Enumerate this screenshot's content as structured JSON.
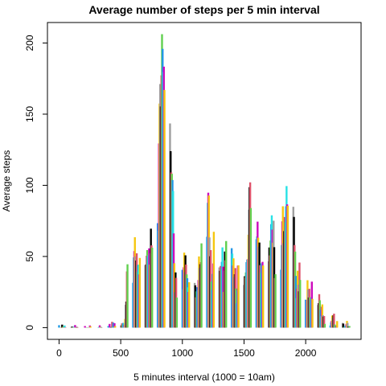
{
  "chart_data": {
    "type": "bar_h",
    "title": "Average number of steps per 5 min interval",
    "x_label": "5 minutes interval (1000 = 10am)",
    "y_label": "Average steps",
    "colors": [
      "#2297E6",
      "#28E2E5",
      "#CD0BBC",
      "#F5C710",
      "#9E9E9E",
      "#000000",
      "#DF536B",
      "#61D04F"
    ],
    "xlim": [
      -94.2,
      2449.2
    ],
    "ylim": [
      -8.25,
      214.4
    ],
    "xticks": [
      0,
      500,
      1000,
      1500,
      2000
    ],
    "yticks": [
      0,
      50,
      100,
      150,
      200
    ],
    "x": [
      0,
      5,
      10,
      15,
      20,
      25,
      30,
      35,
      40,
      45,
      50,
      55,
      100,
      105,
      110,
      115,
      120,
      125,
      130,
      135,
      140,
      145,
      150,
      155,
      200,
      205,
      210,
      215,
      220,
      225,
      230,
      235,
      240,
      245,
      250,
      255,
      300,
      305,
      310,
      315,
      320,
      325,
      330,
      335,
      340,
      345,
      350,
      355,
      400,
      405,
      410,
      415,
      420,
      425,
      430,
      435,
      440,
      445,
      450,
      455,
      500,
      505,
      510,
      515,
      520,
      525,
      530,
      535,
      540,
      545,
      550,
      555,
      600,
      605,
      610,
      615,
      620,
      625,
      630,
      635,
      640,
      645,
      650,
      655,
      700,
      705,
      710,
      715,
      720,
      725,
      730,
      735,
      740,
      745,
      750,
      755,
      800,
      805,
      810,
      815,
      820,
      825,
      830,
      835,
      840,
      845,
      850,
      855,
      900,
      905,
      910,
      915,
      920,
      925,
      930,
      935,
      940,
      945,
      950,
      955,
      1000,
      1005,
      1010,
      1015,
      1020,
      1025,
      1030,
      1035,
      1040,
      1045,
      1050,
      1055,
      1100,
      1105,
      1110,
      1115,
      1120,
      1125,
      1130,
      1135,
      1140,
      1145,
      1150,
      1155,
      1200,
      1205,
      1210,
      1215,
      1220,
      1225,
      1230,
      1235,
      1240,
      1245,
      1250,
      1255,
      1300,
      1305,
      1310,
      1315,
      1320,
      1325,
      1330,
      1335,
      1340,
      1345,
      1350,
      1355,
      1400,
      1405,
      1410,
      1415,
      1420,
      1425,
      1430,
      1435,
      1440,
      1445,
      1450,
      1455,
      1500,
      1505,
      1510,
      1515,
      1520,
      1525,
      1530,
      1535,
      1540,
      1545,
      1550,
      1555,
      1600,
      1605,
      1610,
      1615,
      1620,
      1625,
      1630,
      1635,
      1640,
      1645,
      1650,
      1655,
      1700,
      1705,
      1710,
      1715,
      1720,
      1725,
      1730,
      1735,
      1740,
      1745,
      1750,
      1755,
      1800,
      1805,
      1810,
      1815,
      1820,
      1825,
      1830,
      1835,
      1840,
      1845,
      1850,
      1855,
      1900,
      1905,
      1910,
      1915,
      1920,
      1925,
      1930,
      1935,
      1940,
      1945,
      1950,
      1955,
      2000,
      2005,
      2010,
      2015,
      2020,
      2025,
      2030,
      2035,
      2040,
      2045,
      2050,
      2055,
      2100,
      2105,
      2110,
      2115,
      2120,
      2125,
      2130,
      2135,
      2140,
      2145,
      2150,
      2155,
      2200,
      2205,
      2210,
      2215,
      2220,
      2225,
      2230,
      2235,
      2240,
      2245,
      2250,
      2255,
      2300,
      2305,
      2310,
      2315,
      2320,
      2325,
      2330,
      2335,
      2340,
      2345,
      2350,
      2355
    ],
    "values": [
      1.7,
      0.3,
      0.1,
      0.2,
      0.1,
      2.1,
      0.5,
      0.9,
      0,
      1.5,
      0.3,
      0.1,
      0.3,
      0.7,
      0.2,
      0.3,
      0,
      1.1,
      1.8,
      0.2,
      0.2,
      0.4,
      0.3,
      0,
      0,
      0,
      1.1,
      0,
      0,
      0.1,
      0,
      0.2,
      0,
      0,
      1.5,
      0.9,
      0,
      0,
      0,
      0,
      0.2,
      0.6,
      1.6,
      0.6,
      0.5,
      0.1,
      0,
      0,
      1.2,
      0.9,
      2.6,
      0,
      0.3,
      0.4,
      4.1,
      0.7,
      3.5,
      0.8,
      3.1,
      1.1,
      0,
      1.6,
      3.0,
      2.2,
      3.3,
      3.0,
      2.1,
      6.1,
      16.0,
      18.3,
      39.5,
      44.5,
      31.5,
      49.3,
      53.8,
      63.5,
      50.0,
      47.1,
      52.2,
      39.3,
      44.0,
      44.2,
      37.4,
      49.0,
      43.8,
      44.4,
      50.5,
      54.5,
      49.9,
      51.0,
      55.7,
      44.3,
      52.3,
      69.5,
      57.8,
      56.2,
      73.4,
      68.2,
      129.4,
      157.5,
      171.2,
      155.4,
      177.3,
      206.2,
      195.9,
      179.6,
      183.4,
      167.0,
      143.5,
      124.0,
      109.1,
      108.1,
      103.7,
      96.0,
      66.2,
      45.2,
      24.8,
      38.8,
      35.0,
      21.1,
      40.6,
      27.0,
      42.4,
      52.7,
      38.9,
      50.8,
      44.3,
      37.4,
      34.7,
      28.3,
      25.1,
      31.9,
      31.4,
      29.7,
      21.3,
      25.5,
      28.4,
      26.5,
      33.4,
      50.0,
      42.0,
      44.6,
      46.0,
      59.2,
      63.9,
      87.7,
      94.8,
      92.8,
      63.4,
      50.2,
      54.5,
      32.4,
      26.5,
      37.7,
      45.1,
      67.3,
      42.3,
      39.9,
      43.3,
      41.0,
      46.2,
      56.4,
      42.8,
      25.1,
      40.0,
      53.5,
      47.3,
      60.8,
      55.8,
      52.0,
      43.6,
      48.7,
      35.5,
      37.5,
      41.8,
      27.5,
      17.1,
      26.1,
      43.6,
      43.8,
      30.0,
      36.1,
      35.5,
      38.8,
      46.0,
      47.8,
      48.1,
      65.3,
      82.9,
      98.7,
      102.1,
      84.0,
      62.1,
      64.1,
      74.5,
      63.2,
      56.9,
      59.8,
      43.9,
      38.6,
      44.7,
      45.5,
      46.2,
      43.7,
      46.6,
      56.3,
      50.7,
      61.2,
      72.7,
      78.9,
      68.9,
      59.7,
      75.1,
      56.5,
      34.8,
      37.5,
      40.7,
      58.0,
      74.7,
      85.3,
      59.3,
      67.8,
      77.7,
      74.2,
      85.3,
      99.5,
      86.6,
      85.6,
      84.9,
      77.8,
      58.0,
      53.4,
      36.3,
      20.7,
      27.4,
      40.0,
      30.2,
      25.5,
      45.7,
      33.5,
      19.6,
      19.0,
      19.3,
      33.3,
      26.8,
      21.2,
      27.3,
      21.3,
      19.5,
      21.3,
      32.3,
      20.2,
      15.9,
      17.2,
      23.5,
      19.2,
      12.5,
      8.0,
      14.7,
      16.3,
      8.7,
      7.8,
      8.1,
      2.6,
      1.5,
      3.7,
      4.8,
      8.5,
      7.1,
      8.7,
      9.8,
      2.2,
      0.3,
      0.1,
      1.6,
      4.6,
      3.3,
      2.8,
      0,
      0.8,
      1.0,
      1.6,
      2.6,
      4.7,
      3.3,
      0.6,
      0.2,
      1.1
    ]
  }
}
